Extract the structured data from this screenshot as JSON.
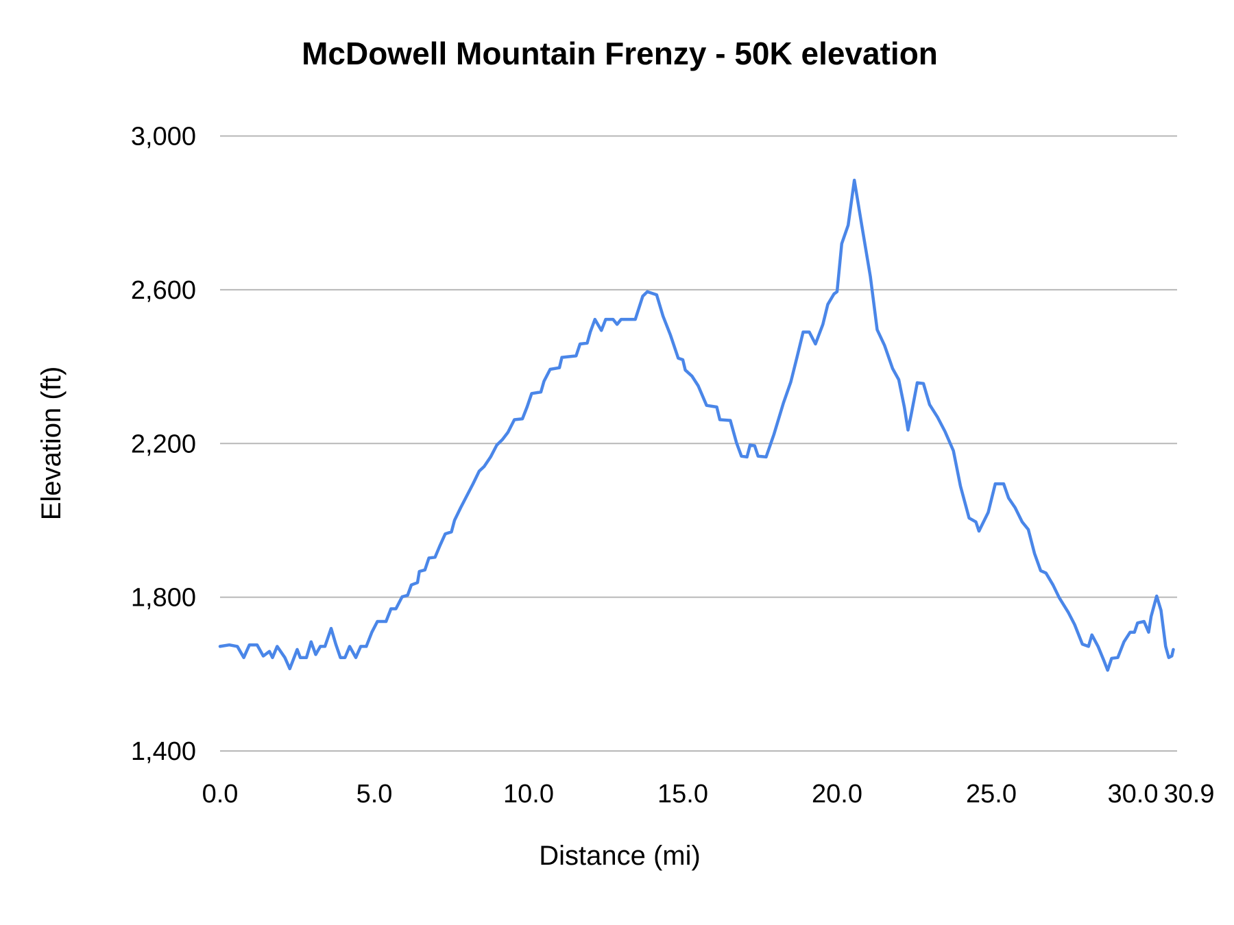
{
  "chart_data": {
    "type": "line",
    "title": "McDowell Mountain Frenzy - 50K elevation",
    "xlabel": "Distance (mi)",
    "ylabel": "Elevation (ft)",
    "xlim": [
      0,
      30.9
    ],
    "ylim": [
      1400,
      3000
    ],
    "x_ticks": [
      "0.0",
      "5.0",
      "10.0",
      "15.0",
      "20.0",
      "25.0",
      "30.0",
      "30.9"
    ],
    "x_tick_values": [
      0,
      5,
      10,
      15,
      20,
      25,
      30,
      30.9
    ],
    "y_ticks": [
      "1,400",
      "1,800",
      "2,200",
      "2,600",
      "3,000"
    ],
    "y_tick_values": [
      1400,
      1800,
      2200,
      2600,
      3000
    ],
    "grid": "horizontal",
    "legend": "none",
    "colors": {
      "line": "#4a86e8",
      "grid": "#b7b7b7"
    },
    "series": [
      {
        "x": [
          0,
          0.3,
          0.56,
          0.77,
          0.95,
          1.2,
          1.4,
          1.6,
          1.7,
          1.85,
          2.1,
          2.26,
          2.5,
          2.6,
          2.8,
          2.95,
          3.1,
          3.25,
          3.4,
          3.6,
          3.75,
          3.9,
          4.05,
          4.2,
          4.4,
          4.56,
          4.74,
          4.92,
          5.1,
          5.38,
          5.54,
          5.7,
          5.9,
          6.08,
          6.2,
          6.4,
          6.46,
          6.64,
          6.77,
          6.97,
          7.13,
          7.3,
          7.5,
          7.6,
          7.8,
          8.0,
          8.2,
          8.4,
          8.56,
          8.77,
          8.97,
          9.15,
          9.33,
          9.54,
          9.8,
          9.95,
          10.1,
          10.4,
          10.5,
          10.7,
          11.0,
          11.08,
          11.54,
          11.67,
          11.9,
          12.0,
          12.15,
          12.36,
          12.5,
          12.74,
          12.87,
          13.0,
          13.46,
          13.7,
          13.85,
          14.15,
          14.36,
          14.6,
          14.85,
          15.0,
          15.08,
          15.3,
          15.5,
          15.77,
          16.1,
          16.2,
          16.54,
          16.74,
          16.9,
          17.08,
          17.18,
          17.33,
          17.44,
          17.7,
          17.95,
          18.26,
          18.5,
          18.7,
          18.9,
          19.1,
          19.3,
          19.54,
          19.7,
          19.9,
          20.0,
          20.15,
          20.36,
          20.56,
          20.8,
          21.08,
          21.3,
          21.54,
          21.8,
          22.0,
          22.18,
          22.3,
          22.4,
          22.6,
          22.8,
          23.0,
          23.26,
          23.5,
          23.77,
          24.0,
          24.28,
          24.5,
          24.6,
          24.9,
          25.13,
          25.4,
          25.56,
          25.77,
          26.0,
          26.2,
          26.4,
          26.6,
          26.77,
          27.0,
          27.2,
          27.5,
          27.7,
          27.95,
          28.15,
          28.26,
          28.46,
          28.64,
          28.77,
          28.9,
          29.1,
          29.3,
          29.5,
          29.64,
          29.74,
          29.95,
          30.1,
          30.18,
          30.36,
          30.5,
          30.65,
          30.75,
          30.85,
          30.9
        ],
        "y": [
          1672,
          1676,
          1672,
          1643,
          1676,
          1676,
          1647,
          1659,
          1643,
          1672,
          1643,
          1614,
          1664,
          1643,
          1643,
          1684,
          1651,
          1672,
          1672,
          1719,
          1678,
          1643,
          1643,
          1672,
          1643,
          1672,
          1672,
          1709,
          1737,
          1737,
          1770,
          1770,
          1801,
          1805,
          1832,
          1838,
          1867,
          1871,
          1902,
          1904,
          1935,
          1965,
          1970,
          2000,
          2033,
          2064,
          2095,
          2128,
          2140,
          2165,
          2196,
          2210,
          2229,
          2262,
          2264,
          2295,
          2330,
          2334,
          2362,
          2393,
          2397,
          2424,
          2428,
          2459,
          2461,
          2490,
          2523,
          2494,
          2523,
          2523,
          2510,
          2523,
          2523,
          2583,
          2595,
          2587,
          2531,
          2482,
          2422,
          2418,
          2391,
          2375,
          2350,
          2299,
          2295,
          2262,
          2260,
          2202,
          2167,
          2165,
          2196,
          2194,
          2167,
          2165,
          2223,
          2305,
          2360,
          2424,
          2490,
          2490,
          2459,
          2510,
          2562,
          2589,
          2595,
          2720,
          2768,
          2885,
          2768,
          2634,
          2496,
          2455,
          2395,
          2366,
          2295,
          2235,
          2274,
          2358,
          2356,
          2301,
          2268,
          2231,
          2181,
          2089,
          2006,
          1996,
          1972,
          2021,
          2095,
          2095,
          2058,
          2033,
          1996,
          1976,
          1914,
          1869,
          1863,
          1832,
          1799,
          1760,
          1729,
          1678,
          1672,
          1702,
          1672,
          1637,
          1610,
          1641,
          1643,
          1684,
          1709,
          1709,
          1733,
          1737,
          1709,
          1750,
          1803,
          1766,
          1672,
          1643,
          1647,
          1664
        ]
      }
    ]
  }
}
